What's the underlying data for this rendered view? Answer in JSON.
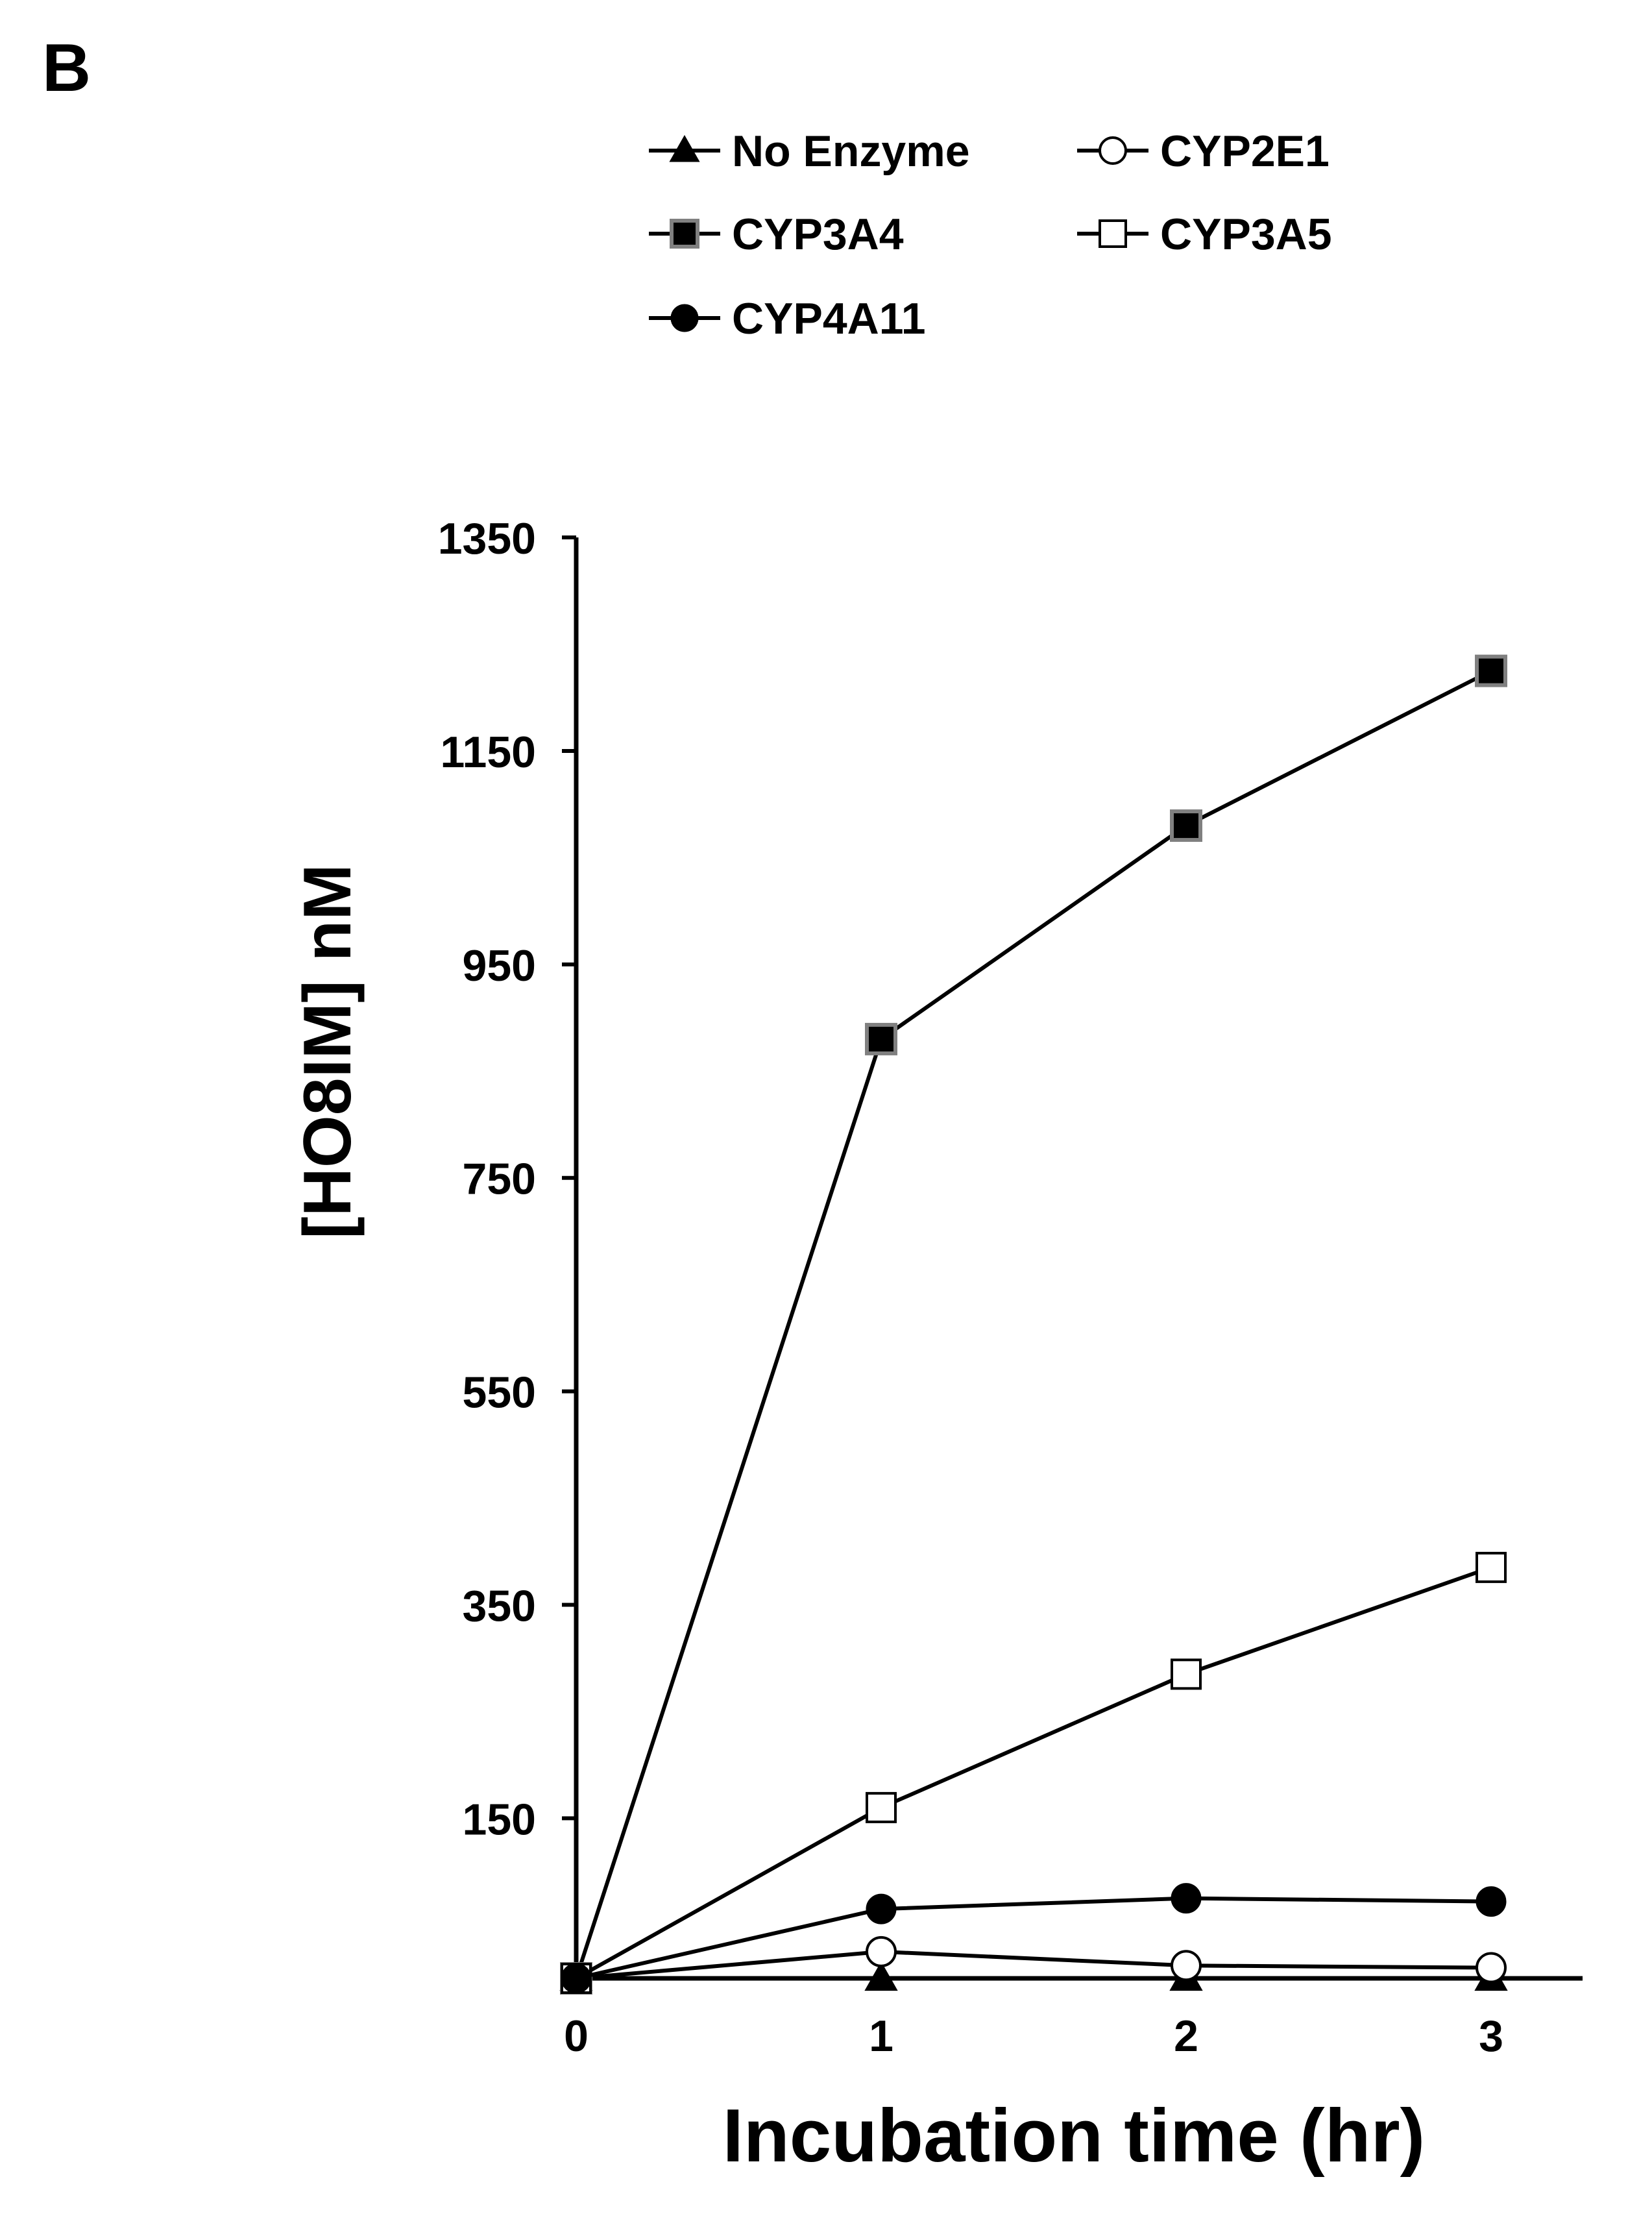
{
  "panel_label": "B",
  "chart_data": {
    "type": "line",
    "xlabel": "Incubation time (hr)",
    "ylabel": "[HO8IM] nM",
    "x": [
      0,
      1,
      2,
      3
    ],
    "xticks": [
      0,
      1,
      2,
      3
    ],
    "xtick_labels": [
      "0",
      "1",
      "2",
      "3"
    ],
    "yticks": [
      150,
      350,
      550,
      750,
      950,
      1150,
      1350
    ],
    "ytick_labels": [
      "150",
      "350",
      "550",
      "750",
      "950",
      "1150",
      "1350"
    ],
    "ylim": [
      0,
      1350
    ],
    "xlim": [
      0,
      3.3
    ],
    "grid": false,
    "legend_position": "top-left (inside plot)",
    "series": [
      {
        "name": "No Enzyme",
        "marker": "triangle-filled",
        "values": [
          0,
          0,
          0,
          0
        ]
      },
      {
        "name": "CYP2E1",
        "marker": "circle-open",
        "values": [
          0,
          25,
          12,
          10
        ]
      },
      {
        "name": "CYP3A4",
        "marker": "square-filled",
        "values": [
          0,
          880,
          1080,
          1225
        ]
      },
      {
        "name": "CYP3A5",
        "marker": "square-open",
        "values": [
          0,
          160,
          285,
          385
        ]
      },
      {
        "name": "CYP4A11",
        "marker": "circle-filled",
        "values": [
          0,
          65,
          75,
          72
        ]
      }
    ]
  }
}
